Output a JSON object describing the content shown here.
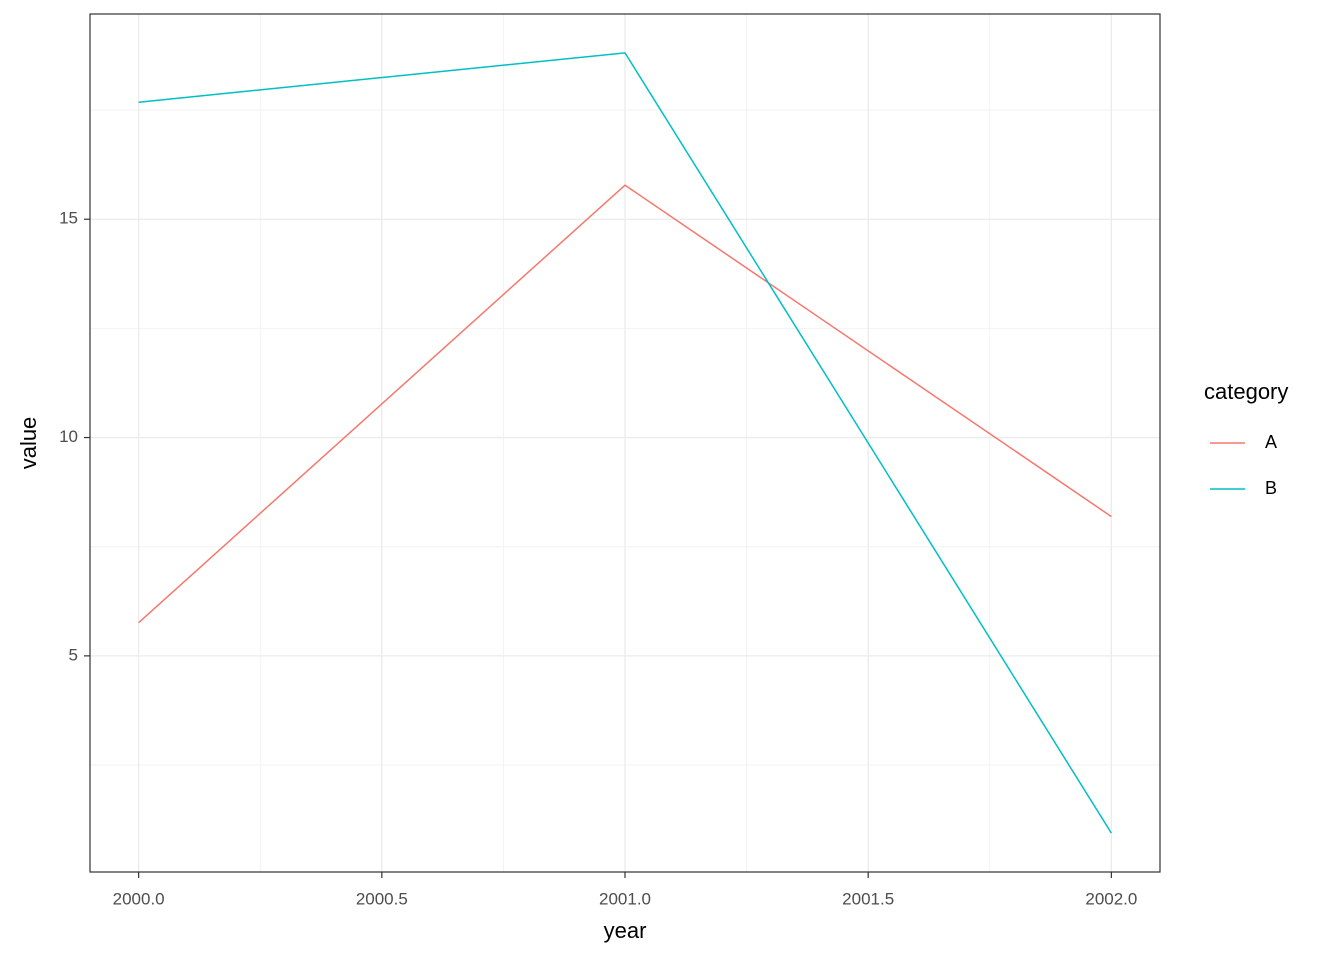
{
  "chart_data": {
    "type": "line",
    "x_label": "year",
    "y_label": "value",
    "x": [
      2000,
      2001,
      2002
    ],
    "series": [
      {
        "name": "A",
        "color": "#F8766D",
        "values": [
          5.76,
          15.78,
          8.19
        ]
      },
      {
        "name": "B",
        "color": "#00BFC4",
        "values": [
          17.68,
          18.81,
          0.94
        ]
      }
    ],
    "xlim": [
      1999.9,
      2002.1
    ],
    "xticks": [
      {
        "value": 2000,
        "label": "2000.0"
      },
      2000.5,
      {
        "value": 2001,
        "label": "2001.0"
      },
      2001.5,
      {
        "value": 2002,
        "label": "2002.0"
      }
    ],
    "ylim": [
      0.05,
      19.7
    ],
    "yticks": [
      5,
      10,
      15
    ],
    "grid": true,
    "legend_title": "category",
    "legend_position": "right"
  }
}
